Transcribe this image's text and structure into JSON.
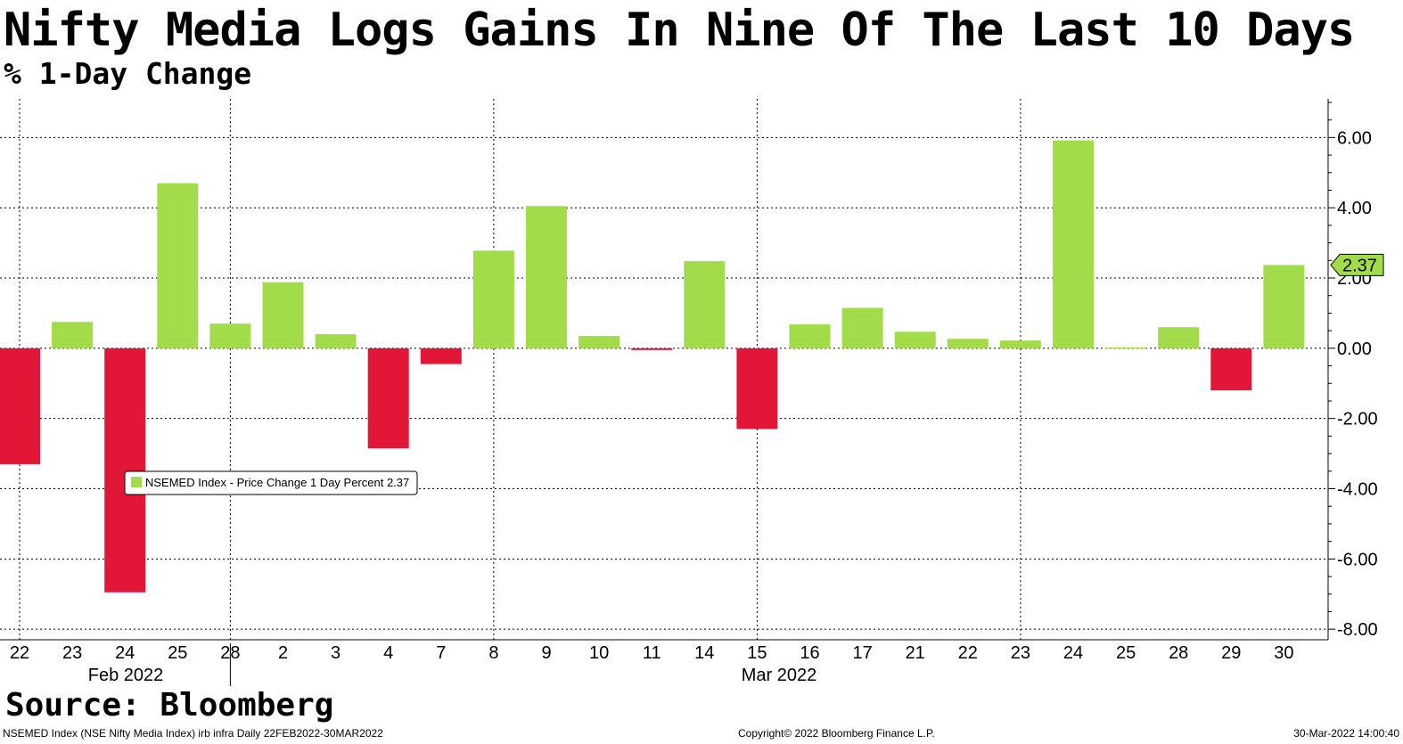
{
  "header": {
    "title": "Nifty Media Logs Gains In Nine Of The Last 10 Days",
    "subtitle": "% 1-Day Change"
  },
  "source": "Source: Bloomberg",
  "footer": {
    "left": "NSEMED Index (NSE Nifty Media Index) irb infra  Daily 22FEB2022-30MAR2022",
    "center": "Copyright© 2022 Bloomberg Finance L.P.",
    "right": "30-Mar-2022 14:00:40"
  },
  "colors": {
    "positive": "#a3dc4b",
    "negative": "#e21737",
    "grid": "#000000",
    "callout_fill": "#a3dc4b"
  },
  "chart_data": {
    "type": "bar",
    "categories": [
      "22",
      "23",
      "24",
      "25",
      "28",
      "2",
      "3",
      "4",
      "7",
      "8",
      "9",
      "10",
      "11",
      "14",
      "15",
      "16",
      "17",
      "21",
      "22",
      "23",
      "24",
      "25",
      "28",
      "29",
      "30"
    ],
    "month_labels": [
      {
        "label": "Feb 2022",
        "after_index": 2
      },
      {
        "label": "Mar 2022",
        "after_index": 14
      }
    ],
    "series": [
      {
        "name": "NSEMED Index - Price Change 1 Day Percent",
        "values": [
          -3.3,
          0.75,
          -6.95,
          4.7,
          0.7,
          1.88,
          0.4,
          -2.85,
          -0.45,
          2.78,
          4.05,
          0.35,
          -0.05,
          2.48,
          -2.3,
          0.68,
          1.15,
          0.47,
          0.27,
          0.22,
          5.92,
          0.02,
          0.6,
          -1.2,
          2.37
        ]
      }
    ],
    "legend": {
      "text": "NSEMED Index - Price Change 1 Day Percent 2.37",
      "placement": "lower-left"
    },
    "last_value_label": "2.37",
    "last_value": 2.37,
    "yticks": [
      6,
      4,
      2,
      0,
      -2,
      -4,
      -6,
      -8
    ],
    "ytick_labels": [
      "6.00",
      "4.00",
      "2.00",
      "0.00",
      "-2.00",
      "-4.00",
      "-6.00",
      "-8.00"
    ],
    "ylim": [
      -8.3,
      7.1
    ],
    "ylabel": "",
    "xlabel": "",
    "grid": true,
    "y_axis_side": "right"
  }
}
